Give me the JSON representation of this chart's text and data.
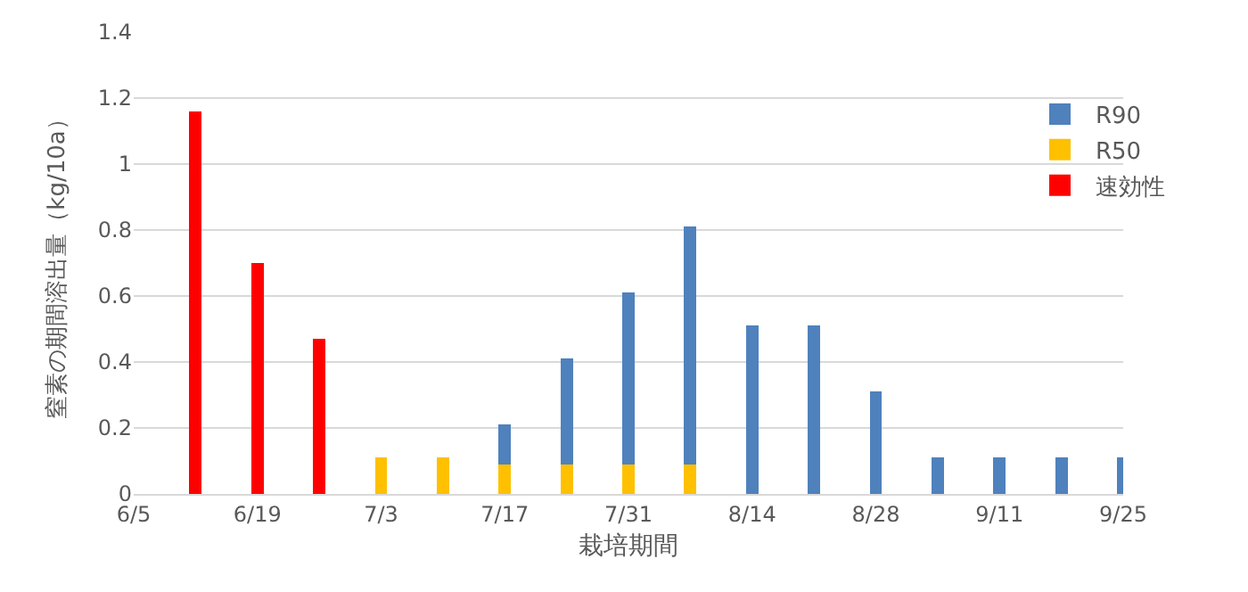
{
  "chart_data": {
    "type": "bar",
    "stacked": true,
    "xlabel": "栽培期間",
    "ylabel": "窒素の期間溶出量（kg/10a）",
    "x": [
      "--06-12",
      "--06-19",
      "--06-26",
      "--07-03",
      "--07-10",
      "--07-17",
      "--07-24",
      "--07-31",
      "--08-07",
      "--08-14",
      "--08-21",
      "--08-28",
      "--09-04",
      "--09-11",
      "--09-18",
      "--09-25"
    ],
    "series": [
      {
        "name": "速効性",
        "color": "#ff0000",
        "values": [
          1.16,
          0.7,
          0.47,
          null,
          null,
          null,
          null,
          null,
          null,
          null,
          null,
          null,
          null,
          null,
          null,
          null
        ]
      },
      {
        "name": "R50",
        "color": "#ffc000",
        "values": [
          null,
          null,
          null,
          0.11,
          0.11,
          0.09,
          0.09,
          0.09,
          0.09,
          null,
          null,
          null,
          null,
          null,
          null,
          null
        ]
      },
      {
        "name": "R90",
        "color": "#4f81bd",
        "values": [
          null,
          null,
          null,
          null,
          null,
          0.12,
          0.32,
          0.52,
          0.72,
          0.51,
          0.51,
          0.31,
          0.11,
          0.11,
          0.11,
          0.11
        ]
      }
    ],
    "xlim": [
      "--06-05",
      "--09-25"
    ],
    "xticks": [
      {
        "value": "--06-05",
        "label": "6/5"
      },
      {
        "value": "--06-19",
        "label": "6/19"
      },
      {
        "value": "--07-03",
        "label": "7/3"
      },
      {
        "value": "--07-17",
        "label": "7/17"
      },
      {
        "value": "--07-31",
        "label": "7/31"
      },
      {
        "value": "--08-14",
        "label": "8/14"
      },
      {
        "value": "--08-28",
        "label": "8/28"
      },
      {
        "value": "--09-11",
        "label": "9/11"
      },
      {
        "value": "--09-25",
        "label": "9/25"
      }
    ],
    "ylim": [
      0,
      1.4
    ],
    "yticks": [
      0,
      0.2,
      0.4,
      0.6,
      0.8,
      1,
      1.2,
      1.4
    ],
    "grid": "y",
    "legend": "top right"
  }
}
